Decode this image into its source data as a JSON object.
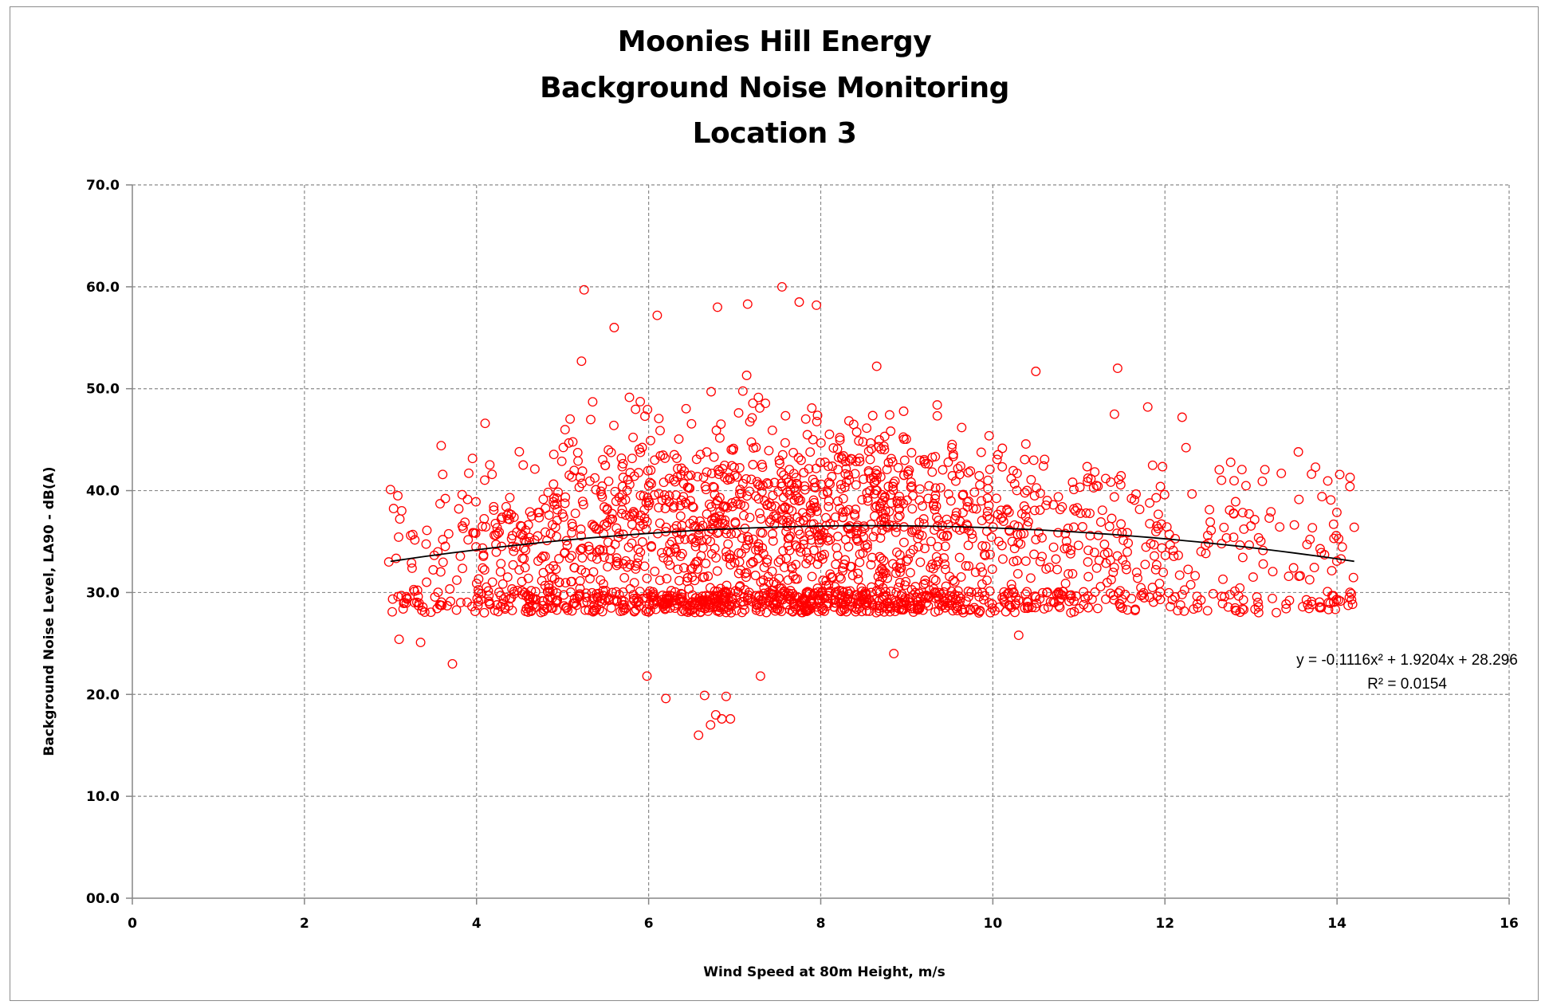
{
  "chart_data": {
    "type": "scatter",
    "title_lines": [
      "Moonies Hill Energy",
      "Background Noise Monitoring",
      "Location 3"
    ],
    "xlabel": "Wind Speed at 80m Height, m/s",
    "ylabel": "Background  Noise Level, LA90 - dB(A)",
    "xlim": [
      0,
      16
    ],
    "ylim": [
      0,
      70
    ],
    "x_ticks": [
      0,
      2,
      4,
      6,
      8,
      10,
      12,
      14,
      16
    ],
    "x_tick_labels": [
      "0",
      "2",
      "4",
      "6",
      "8",
      "10",
      "12",
      "14",
      "16"
    ],
    "y_ticks": [
      0,
      10,
      20,
      30,
      40,
      50,
      60,
      70
    ],
    "y_tick_labels": [
      "00.0",
      "10.0",
      "20.0",
      "30.0",
      "40.0",
      "50.0",
      "60.0",
      "70.0"
    ],
    "grid": "dashed",
    "marker": "open-circle",
    "marker_color": "#ff0000",
    "trend_color": "#000000",
    "trendline": {
      "type": "polynomial",
      "coefficients": [
        -0.1116,
        1.9204,
        28.296
      ],
      "x_range": [
        3.0,
        14.2
      ],
      "equation_label": "y = -0.1116x² + 1.9204x + 28.296",
      "r2_label": "R² = 0.0154"
    },
    "highlight_points": [
      {
        "x": 5.25,
        "y": 59.7
      },
      {
        "x": 7.55,
        "y": 60.0
      },
      {
        "x": 7.75,
        "y": 58.5
      },
      {
        "x": 7.95,
        "y": 58.2
      },
      {
        "x": 6.8,
        "y": 58.0
      },
      {
        "x": 7.15,
        "y": 58.3
      },
      {
        "x": 6.1,
        "y": 57.2
      },
      {
        "x": 5.6,
        "y": 56.0
      },
      {
        "x": 5.22,
        "y": 52.7
      },
      {
        "x": 11.45,
        "y": 52.0
      },
      {
        "x": 10.5,
        "y": 51.7
      },
      {
        "x": 8.65,
        "y": 52.2
      },
      {
        "x": 6.58,
        "y": 16.0
      },
      {
        "x": 6.72,
        "y": 17.0
      },
      {
        "x": 6.85,
        "y": 17.6
      },
      {
        "x": 6.95,
        "y": 17.6
      },
      {
        "x": 6.78,
        "y": 18.0
      },
      {
        "x": 6.9,
        "y": 19.8
      },
      {
        "x": 6.65,
        "y": 19.9
      },
      {
        "x": 6.2,
        "y": 19.6
      },
      {
        "x": 5.98,
        "y": 21.8
      },
      {
        "x": 7.3,
        "y": 21.8
      },
      {
        "x": 3.72,
        "y": 23.0
      },
      {
        "x": 8.85,
        "y": 24.0
      },
      {
        "x": 10.3,
        "y": 25.8
      },
      {
        "x": 14.2,
        "y": 36.4
      },
      {
        "x": 14.15,
        "y": 40.4
      },
      {
        "x": 13.75,
        "y": 42.3
      },
      {
        "x": 13.55,
        "y": 43.8
      },
      {
        "x": 13.9,
        "y": 29.0
      },
      {
        "x": 13.6,
        "y": 28.6
      },
      {
        "x": 12.9,
        "y": 28.4
      },
      {
        "x": 3.0,
        "y": 40.1
      },
      {
        "x": 3.1,
        "y": 25.4
      },
      {
        "x": 3.35,
        "y": 25.1
      },
      {
        "x": 4.1,
        "y": 46.6
      },
      {
        "x": 12.2,
        "y": 47.2
      },
      {
        "x": 11.8,
        "y": 48.2
      },
      {
        "x": 3.02,
        "y": 28.1
      },
      {
        "x": 2.98,
        "y": 33.0
      }
    ],
    "cloud": {
      "count": 2300,
      "x_range": [
        3.0,
        14.2
      ],
      "y_floor": 28.0,
      "seed": 7
    }
  }
}
